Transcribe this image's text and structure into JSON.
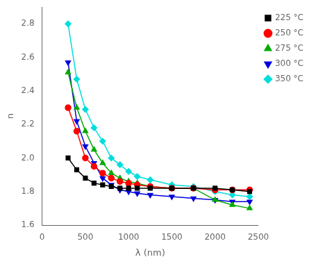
{
  "chart_data": {
    "type": "line",
    "xlabel": "λ (nm)",
    "ylabel": "n",
    "xlim": [
      0,
      2500
    ],
    "ylim": [
      1.6,
      2.9
    ],
    "xticks": [
      0,
      500,
      1000,
      1500,
      2000,
      2500
    ],
    "yticks": [
      1.6,
      1.8,
      {
        "value": 2.0,
        "label": "2.0"
      },
      2.2,
      2.4,
      2.6,
      2.8
    ],
    "grid": false,
    "legend": "upper right",
    "x": [
      300,
      400,
      500,
      600,
      700,
      800,
      900,
      1000,
      1100,
      1250,
      1500,
      1750,
      2000,
      2200,
      2400
    ],
    "series": [
      {
        "name": "225 °C",
        "color": "#000000",
        "marker": "square",
        "values": [
          2.0,
          1.93,
          1.88,
          1.85,
          1.84,
          1.83,
          1.82,
          1.82,
          1.82,
          1.82,
          1.82,
          1.82,
          1.82,
          1.81,
          1.8
        ]
      },
      {
        "name": "250 °C",
        "color": "#ff0000",
        "marker": "circle",
        "values": [
          2.3,
          2.16,
          2.0,
          1.95,
          1.91,
          1.88,
          1.86,
          1.85,
          1.84,
          1.83,
          1.82,
          1.82,
          1.81,
          1.81,
          1.81
        ]
      },
      {
        "name": "275 °C",
        "color": "#00aa00",
        "marker": "triangle-up",
        "values": [
          2.51,
          2.3,
          2.16,
          2.05,
          1.97,
          1.91,
          1.88,
          1.86,
          1.85,
          1.83,
          1.82,
          1.82,
          1.75,
          1.72,
          1.7
        ]
      },
      {
        "name": "300 °C",
        "color": "#0000dd",
        "marker": "triangle-down",
        "values": [
          2.57,
          2.22,
          2.07,
          1.97,
          1.88,
          1.84,
          1.81,
          1.8,
          1.79,
          1.78,
          1.77,
          1.76,
          1.75,
          1.74,
          1.74
        ]
      },
      {
        "name": "350 °C",
        "color": "#00dddd",
        "marker": "diamond",
        "values": [
          2.8,
          2.47,
          2.29,
          2.18,
          2.1,
          2.0,
          1.96,
          1.92,
          1.89,
          1.87,
          1.84,
          1.83,
          1.8,
          1.78,
          1.77
        ]
      }
    ]
  }
}
